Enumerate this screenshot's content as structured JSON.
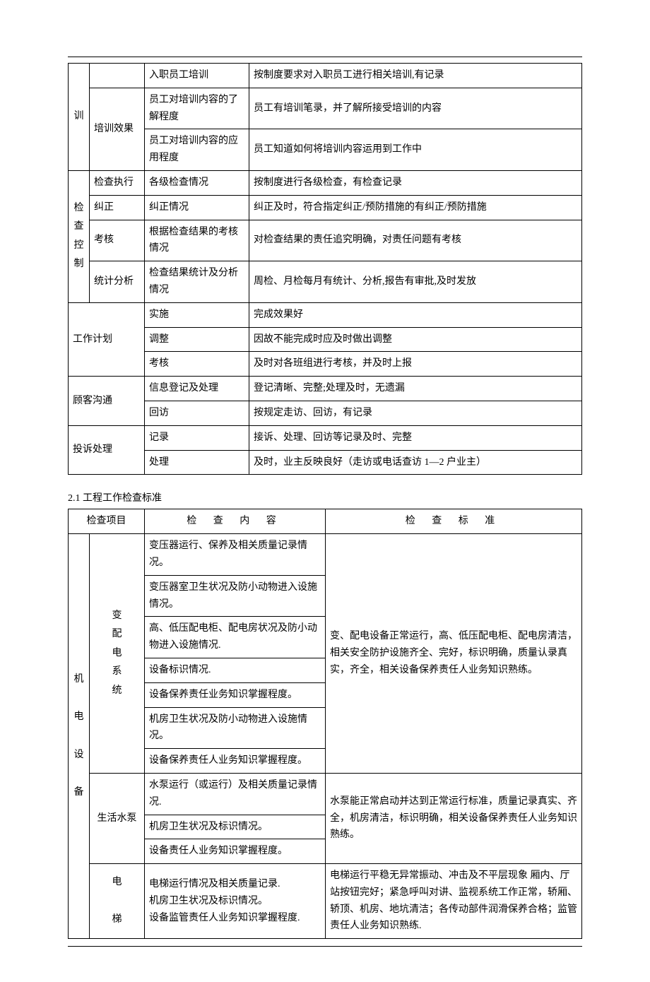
{
  "sectionTitle": "2.1 工程工作检查标准",
  "t1": {
    "rows": [
      {
        "c1": "训",
        "c2": "",
        "c3": "入职员工培训",
        "c4": "按制度要求对入职员工进行相关培训,有记录"
      },
      {
        "c1": "",
        "c2": "培训效果",
        "c3": "员工对培训内容的了解程度",
        "c4": "员工有培训笔录，并了解所接受培训的内容"
      },
      {
        "c1": "",
        "c2": "",
        "c3": "员工对培训内容的应用程度",
        "c4": "员工知道如何将培训内容运用到工作中"
      },
      {
        "c1": "检查控制",
        "c2": "检查执行",
        "c3": "各级检查情况",
        "c4": "按制度进行各级检查，有检查记录"
      },
      {
        "c1": "",
        "c2": "纠正",
        "c3": "纠正情况",
        "c4": "纠正及时，符合指定纠正/预防措施的有纠正/预防措施"
      },
      {
        "c1": "",
        "c2": "考核",
        "c3": "根据检查结果的考核情况",
        "c4": "对检查结果的责任追究明确，对责任问题有考核"
      },
      {
        "c1": "",
        "c2": "统计分析",
        "c3": "检查结果统计及分析情况",
        "c4": "周检、月检每月有统计、分析,报告有审批,及时发放"
      },
      {
        "c1": "工作计划",
        "c2": "",
        "c3": "实施",
        "c4": "完成效果好"
      },
      {
        "c1": "",
        "c2": "",
        "c3": "调整",
        "c4": "因故不能完成时应及时做出调整"
      },
      {
        "c1": "",
        "c2": "",
        "c3": "考核",
        "c4": "及时对各班组进行考核，并及时上报"
      },
      {
        "c1": "顾客沟通",
        "c2": "",
        "c3": "信息登记及处理",
        "c4": "登记清晰、完整;处理及时，无遗漏"
      },
      {
        "c1": "",
        "c2": "",
        "c3": "回访",
        "c4": "按规定走访、回访，有记录"
      },
      {
        "c1": "投诉处理",
        "c2": "",
        "c3": "记录",
        "c4": "接诉、处理、回访等记录及时、完整"
      },
      {
        "c1": "",
        "c2": "",
        "c3": "处理",
        "c4": "及时，业主反映良好（走访或电话查访 1—2 户业主）"
      }
    ]
  },
  "t2": {
    "header": {
      "c12": "检查项目",
      "c3": "检  查  内  容",
      "c4": "检  查  标  准"
    },
    "group1": {
      "left": "机\n\n电\n\n设\n\n备",
      "sub": "变配电系统",
      "items": [
        "变压器运行、保养及相关质量记录情况。",
        "变压器室卫生状况及防小动物进入设施情况。",
        "高、低压配电柜、配电房状况及防小动物进入设施情况.",
        "设备标识情况.",
        "设备保养责任业务知识掌握程度。",
        "机房卫生状况及防小动物进入设施情况。",
        "设备保养责任人业务知识掌握程度。"
      ],
      "std": "变、配电设备正常运行，高、低压配电柜、配电房清洁，相关安全防护设施齐全、完好，标识明确，质量认录真实，齐全，相关设备保养责任人业务知识熟练。"
    },
    "group2": {
      "sub": "生活水泵",
      "items": [
        "水泵运行（或运行）及相关质量记录情况.",
        "机房卫生状况及标识情况。",
        "设备责任人业务知识掌握程度。"
      ],
      "std": "水泵能正常启动并达到正常运行标准，质量记录真实、齐全，机房清洁，标识明确，相关设备保养责任人业务知识熟练。"
    },
    "group3": {
      "sub": "电\n\n梯",
      "content": "电梯运行情况及相关质量记录.\n机房卫生状况及标识情况。\n设备监管责任人业务知识掌握程度.",
      "std": "电梯运行平稳无异常振动、冲击及不平层现象 厢内、厅站按钮完好；紧急呼叫对讲、监视系统工作正常，轿厢、轿顶、机房、地坑清洁；各传动部件润滑保养合格；监管责任人业务知识熟练."
    }
  }
}
